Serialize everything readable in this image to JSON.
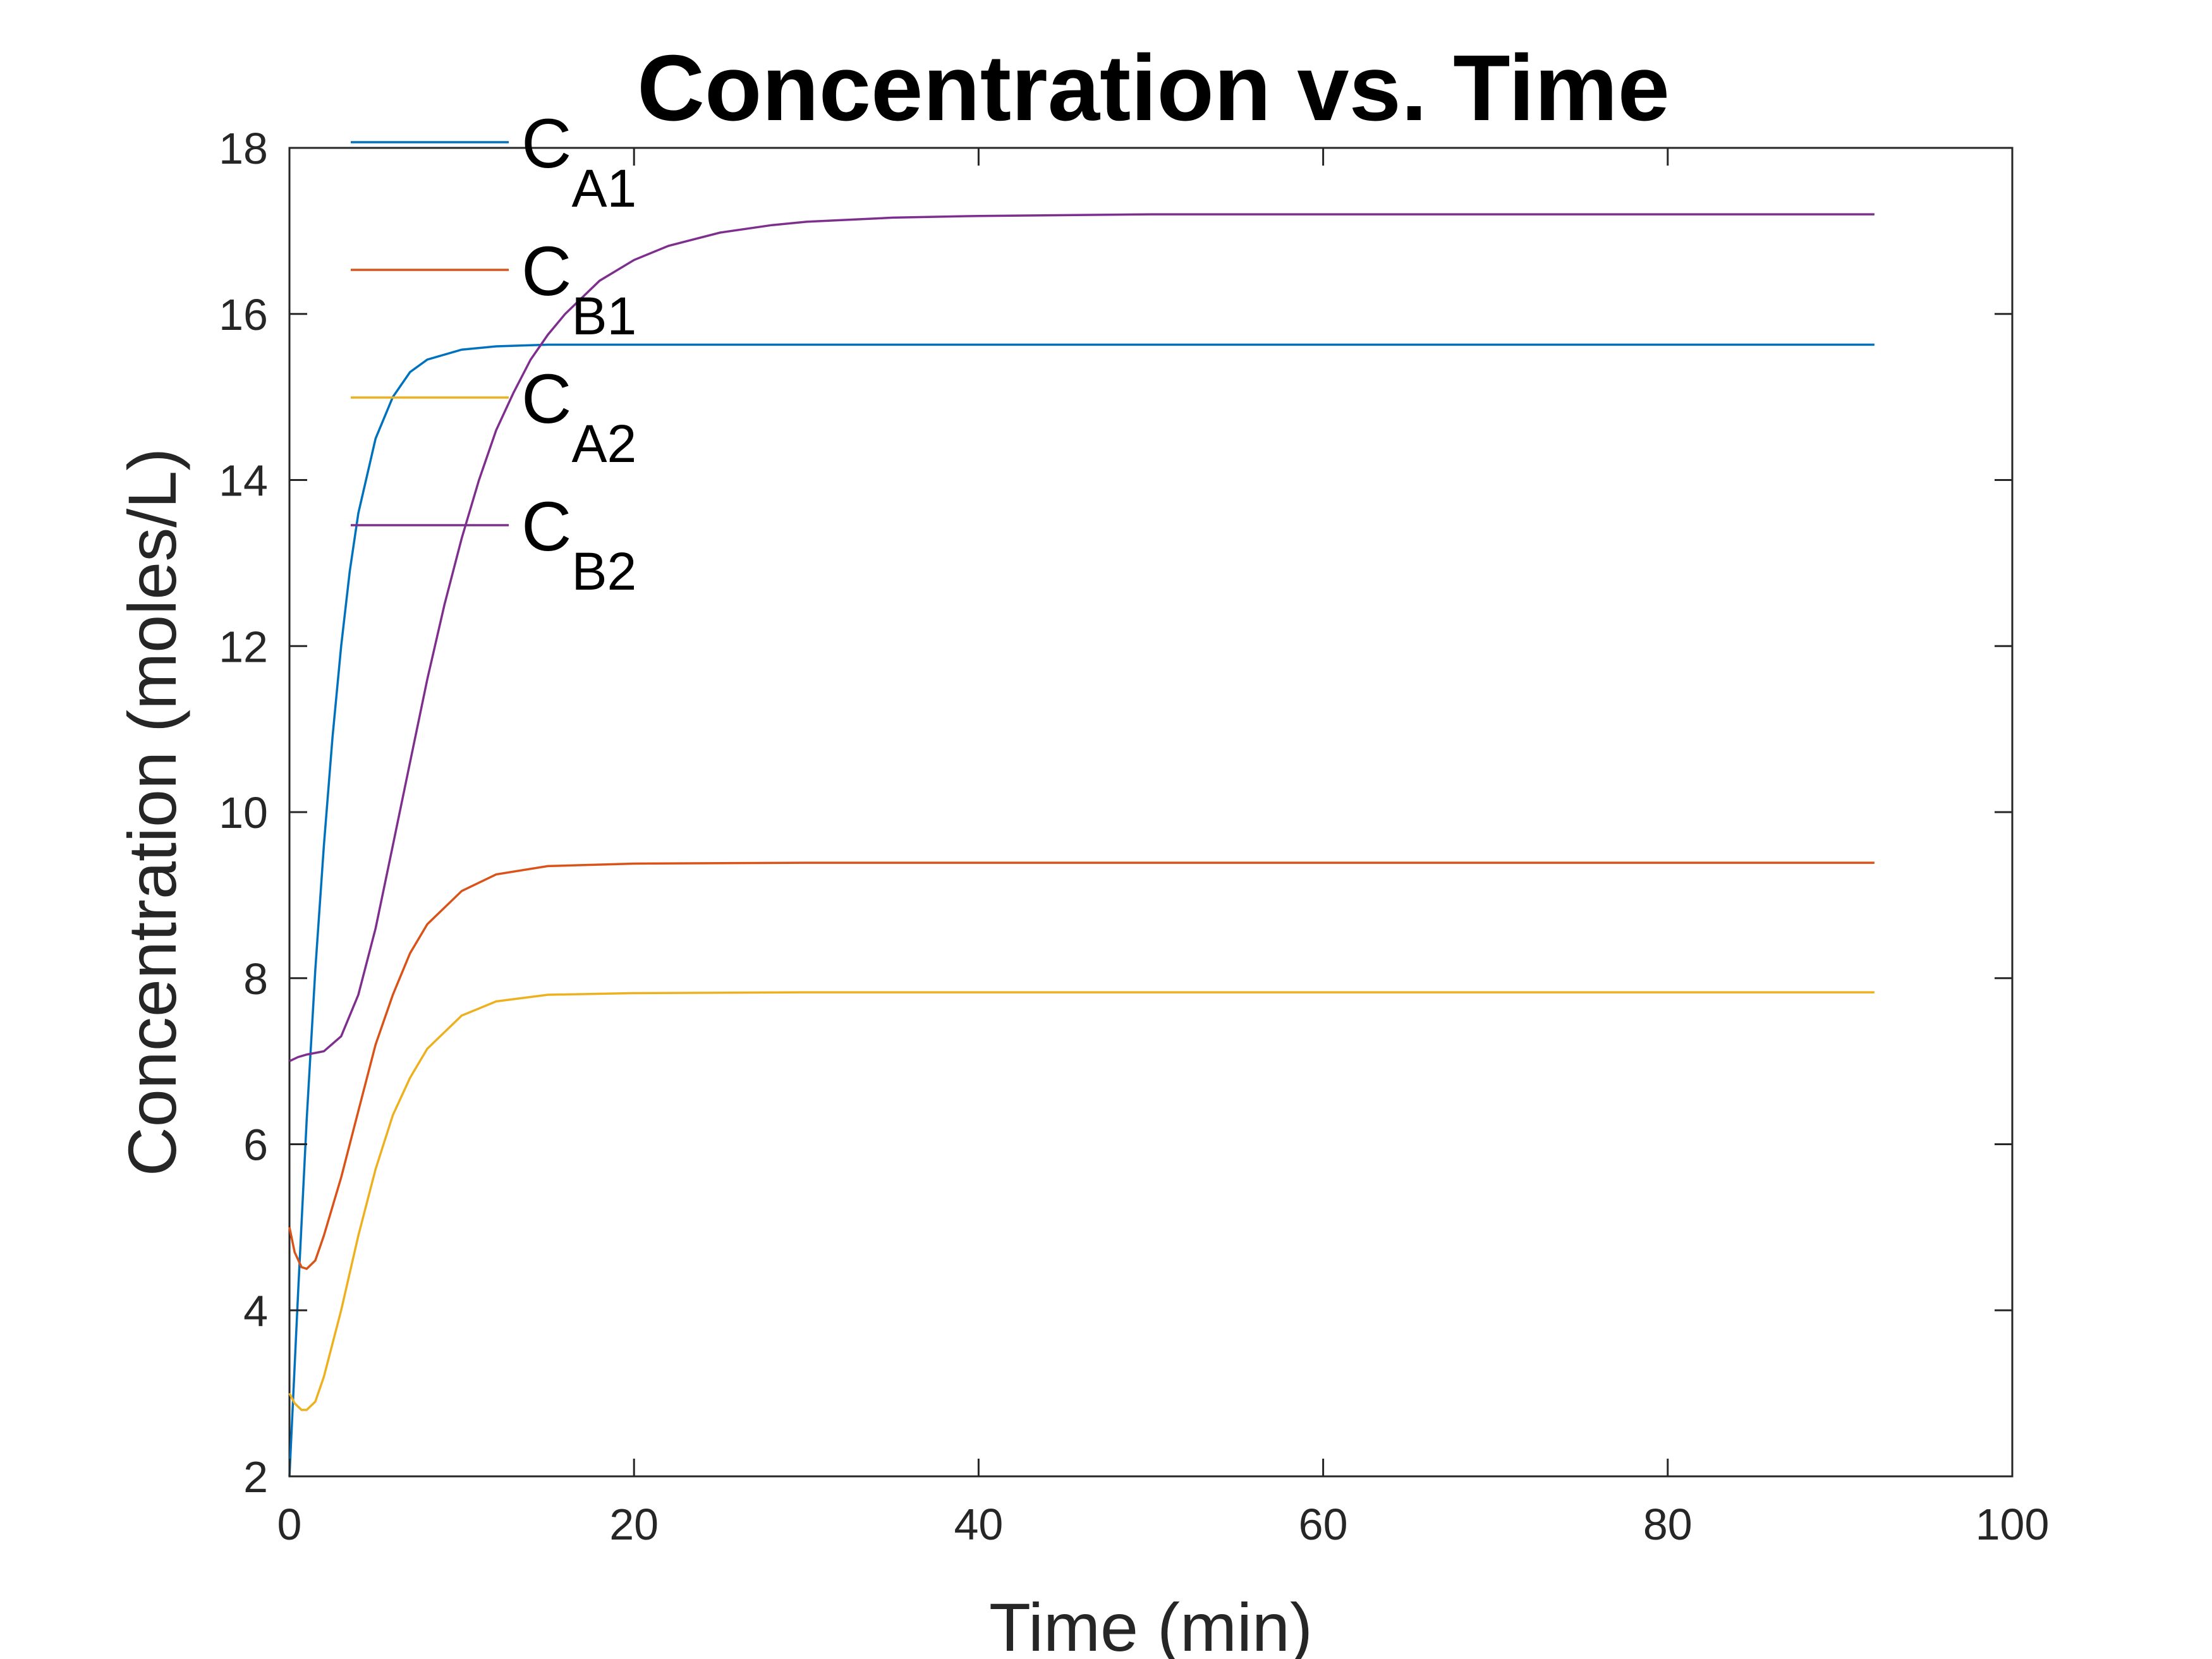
{
  "chart_data": {
    "type": "line",
    "title": "Concentration vs. Time",
    "xlabel": "Time (min)",
    "ylabel": "Concentration (moles/L)",
    "xlim": [
      0,
      100
    ],
    "ylim": [
      2,
      18
    ],
    "xticks": [
      0,
      20,
      40,
      60,
      80,
      100
    ],
    "yticks": [
      2,
      4,
      6,
      8,
      10,
      12,
      14,
      16,
      18
    ],
    "grid": false,
    "legend_position": "top-left",
    "series": [
      {
        "name": "C_A1",
        "label_main": "C",
        "label_sub": "A1",
        "color": "#0072BD",
        "points": [
          [
            0,
            2
          ],
          [
            0.5,
            4.2
          ],
          [
            1,
            6.3
          ],
          [
            1.5,
            8.1
          ],
          [
            2,
            9.6
          ],
          [
            2.5,
            10.9
          ],
          [
            3,
            12.0
          ],
          [
            3.5,
            12.9
          ],
          [
            4,
            13.6
          ],
          [
            5,
            14.5
          ],
          [
            6,
            15.0
          ],
          [
            7,
            15.3
          ],
          [
            8,
            15.45
          ],
          [
            10,
            15.57
          ],
          [
            12,
            15.61
          ],
          [
            15,
            15.63
          ],
          [
            20,
            15.63
          ],
          [
            40,
            15.63
          ],
          [
            92,
            15.63
          ]
        ]
      },
      {
        "name": "C_B1",
        "label_main": "C",
        "label_sub": "B1",
        "color": "#D95319",
        "points": [
          [
            0,
            5.0
          ],
          [
            0.3,
            4.7
          ],
          [
            0.7,
            4.52
          ],
          [
            1,
            4.5
          ],
          [
            1.5,
            4.6
          ],
          [
            2,
            4.9
          ],
          [
            3,
            5.6
          ],
          [
            4,
            6.4
          ],
          [
            5,
            7.2
          ],
          [
            6,
            7.8
          ],
          [
            7,
            8.3
          ],
          [
            8,
            8.65
          ],
          [
            10,
            9.05
          ],
          [
            12,
            9.25
          ],
          [
            15,
            9.35
          ],
          [
            20,
            9.38
          ],
          [
            30,
            9.39
          ],
          [
            92,
            9.39
          ]
        ]
      },
      {
        "name": "C_A2",
        "label_main": "C",
        "label_sub": "A2",
        "color": "#EDB120",
        "points": [
          [
            0,
            3.0
          ],
          [
            0.3,
            2.88
          ],
          [
            0.7,
            2.8
          ],
          [
            1,
            2.8
          ],
          [
            1.5,
            2.9
          ],
          [
            2,
            3.2
          ],
          [
            3,
            4.0
          ],
          [
            4,
            4.9
          ],
          [
            5,
            5.7
          ],
          [
            6,
            6.35
          ],
          [
            7,
            6.8
          ],
          [
            8,
            7.15
          ],
          [
            10,
            7.55
          ],
          [
            12,
            7.72
          ],
          [
            15,
            7.8
          ],
          [
            20,
            7.82
          ],
          [
            30,
            7.83
          ],
          [
            92,
            7.83
          ]
        ]
      },
      {
        "name": "C_B2",
        "label_main": "C",
        "label_sub": "B2",
        "color": "#7E2F8E",
        "points": [
          [
            0,
            7.0
          ],
          [
            0.5,
            7.05
          ],
          [
            1,
            7.08
          ],
          [
            2,
            7.12
          ],
          [
            3,
            7.3
          ],
          [
            4,
            7.8
          ],
          [
            5,
            8.6
          ],
          [
            6,
            9.6
          ],
          [
            7,
            10.6
          ],
          [
            8,
            11.6
          ],
          [
            9,
            12.5
          ],
          [
            10,
            13.3
          ],
          [
            11,
            14.0
          ],
          [
            12,
            14.6
          ],
          [
            13,
            15.05
          ],
          [
            14,
            15.45
          ],
          [
            15,
            15.75
          ],
          [
            16,
            16.0
          ],
          [
            18,
            16.4
          ],
          [
            20,
            16.65
          ],
          [
            22,
            16.82
          ],
          [
            25,
            16.98
          ],
          [
            28,
            17.07
          ],
          [
            30,
            17.11
          ],
          [
            35,
            17.16
          ],
          [
            40,
            17.18
          ],
          [
            50,
            17.2
          ],
          [
            60,
            17.2
          ],
          [
            92,
            17.2
          ]
        ]
      }
    ]
  }
}
